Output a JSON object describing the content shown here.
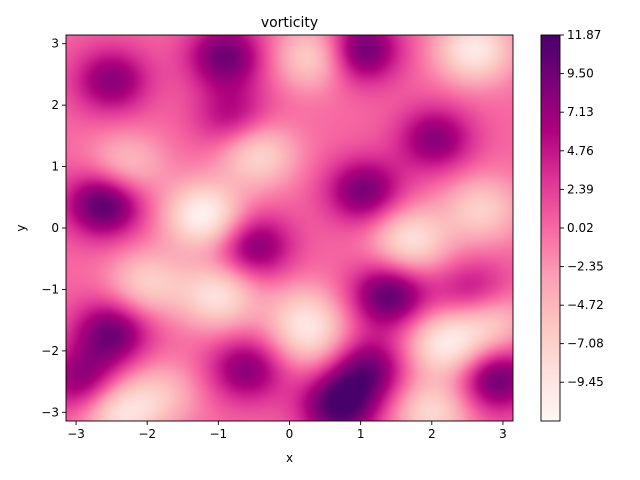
{
  "chart_data": {
    "type": "heatmap",
    "title": "vorticity",
    "xlabel": "x",
    "ylabel": "y",
    "xlim": [
      -3.1416,
      3.1416
    ],
    "ylim": [
      -3.1416,
      3.1416
    ],
    "x_ticks": [
      -3,
      -2,
      -1,
      0,
      1,
      2,
      3
    ],
    "x_tick_labels": [
      "−3",
      "−2",
      "−1",
      "0",
      "1",
      "2",
      "3"
    ],
    "y_ticks": [
      -3,
      -2,
      -1,
      0,
      1,
      2,
      3
    ],
    "y_tick_labels": [
      "−3",
      "−2",
      "−1",
      "0",
      "1",
      "2",
      "3"
    ],
    "colormap": "RdPu",
    "colormap_stops": [
      "#fff7f3",
      "#fde0dd",
      "#fcc5c0",
      "#fa9fb5",
      "#f768a1",
      "#dd3497",
      "#ae017e",
      "#7a0177",
      "#49006a"
    ],
    "value_range": [
      -11.83,
      11.87
    ],
    "colorbar": {
      "ticks": [
        11.87,
        9.5,
        7.13,
        4.76,
        2.39,
        0.02,
        -2.35,
        -4.72,
        -7.08,
        -9.45
      ],
      "tick_labels": [
        "11.87",
        "9.50",
        "7.13",
        "4.76",
        "2.39",
        "0.02",
        "−2.35",
        "−4.72",
        "−7.08",
        "−9.45"
      ]
    },
    "grid": false,
    "features": [
      {
        "x": -2.6,
        "y": 0.4,
        "value": 11.5
      },
      {
        "x": -2.5,
        "y": 2.4,
        "value": 8.0
      },
      {
        "x": -0.9,
        "y": 2.8,
        "value": 9.5
      },
      {
        "x": 1.0,
        "y": 2.9,
        "value": 10.5
      },
      {
        "x": 2.05,
        "y": 1.45,
        "value": 8.0
      },
      {
        "x": 1.05,
        "y": 0.6,
        "value": 9.0
      },
      {
        "x": 1.4,
        "y": -1.1,
        "value": 10.5
      },
      {
        "x": 2.6,
        "y": -1.1,
        "value": 7.0
      },
      {
        "x": -2.5,
        "y": -1.7,
        "value": 9.5
      },
      {
        "x": -2.9,
        "y": -2.5,
        "value": 8.0
      },
      {
        "x": -0.6,
        "y": -2.3,
        "value": 8.0
      },
      {
        "x": 0.7,
        "y": -2.9,
        "value": 11.5
      },
      {
        "x": 1.1,
        "y": -2.3,
        "value": 9.0
      },
      {
        "x": 2.9,
        "y": -2.45,
        "value": 10.0
      },
      {
        "x": -0.5,
        "y": -0.3,
        "value": 8.5
      },
      {
        "x": -0.8,
        "y": 1.8,
        "value": 6.0
      },
      {
        "x": -1.2,
        "y": 0.2,
        "value": -11.5
      },
      {
        "x": -0.45,
        "y": 1.2,
        "value": -8.0
      },
      {
        "x": 0.35,
        "y": 2.8,
        "value": -8.0
      },
      {
        "x": 2.6,
        "y": 2.9,
        "value": -10.0
      },
      {
        "x": -2.3,
        "y": 1.0,
        "value": -6.0
      },
      {
        "x": -2.0,
        "y": -0.9,
        "value": -7.0
      },
      {
        "x": -1.0,
        "y": -1.1,
        "value": -9.0
      },
      {
        "x": 0.2,
        "y": -1.4,
        "value": -5.5
      },
      {
        "x": 1.7,
        "y": -0.2,
        "value": -9.0
      },
      {
        "x": 2.7,
        "y": 0.3,
        "value": -7.0
      },
      {
        "x": 2.2,
        "y": -1.9,
        "value": -10.0
      },
      {
        "x": 2.8,
        "y": -1.5,
        "value": -8.0
      },
      {
        "x": -2.4,
        "y": -3.0,
        "value": -9.0
      },
      {
        "x": 0.3,
        "y": -1.8,
        "value": -6.0
      },
      {
        "x": 2.0,
        "y": -3.0,
        "value": -8.0
      },
      {
        "x": -1.8,
        "y": -2.7,
        "value": -5.0
      }
    ]
  }
}
